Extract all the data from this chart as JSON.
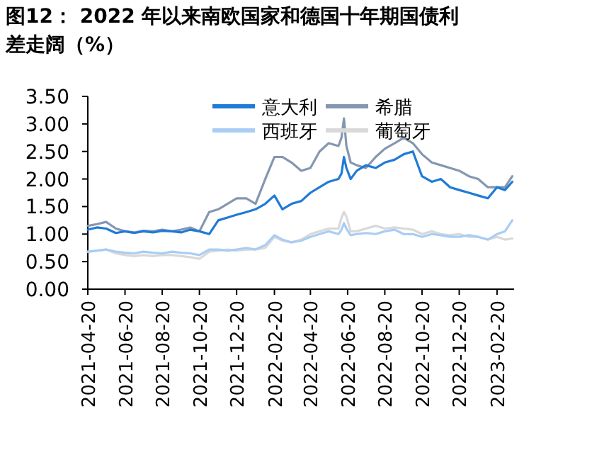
{
  "chart_data": {
    "type": "line",
    "title": "图12：  2022 年以来南欧国家和德国十年期国债利差走阔（%）",
    "x": [
      "2021-04-20",
      "2021-05-05",
      "2021-05-20",
      "2021-06-05",
      "2021-06-20",
      "2021-07-05",
      "2021-07-20",
      "2021-08-05",
      "2021-08-20",
      "2021-09-05",
      "2021-09-20",
      "2021-10-05",
      "2021-10-20",
      "2021-11-05",
      "2021-11-20",
      "2021-12-05",
      "2021-12-20",
      "2022-01-05",
      "2022-01-20",
      "2022-02-05",
      "2022-02-20",
      "2022-03-05",
      "2022-03-20",
      "2022-04-05",
      "2022-04-20",
      "2022-05-05",
      "2022-05-20",
      "2022-06-05",
      "2022-06-10",
      "2022-06-14",
      "2022-06-18",
      "2022-06-25",
      "2022-07-05",
      "2022-07-20",
      "2022-08-05",
      "2022-08-20",
      "2022-09-05",
      "2022-09-20",
      "2022-10-05",
      "2022-10-20",
      "2022-11-05",
      "2022-11-20",
      "2022-12-05",
      "2022-12-20",
      "2023-01-05",
      "2023-01-20",
      "2023-02-05",
      "2023-02-20",
      "2023-03-05",
      "2023-03-17"
    ],
    "series": [
      {
        "name": "意大利",
        "color": "#1f7ad8",
        "values": [
          1.08,
          1.12,
          1.1,
          1.02,
          1.05,
          1.02,
          1.05,
          1.03,
          1.06,
          1.05,
          1.03,
          1.08,
          1.05,
          1.0,
          1.25,
          1.3,
          1.35,
          1.4,
          1.45,
          1.55,
          1.7,
          1.45,
          1.55,
          1.6,
          1.75,
          1.85,
          1.95,
          2.0,
          2.1,
          2.4,
          2.2,
          2.0,
          2.15,
          2.25,
          2.2,
          2.3,
          2.35,
          2.45,
          2.5,
          2.05,
          1.95,
          2.0,
          1.85,
          1.8,
          1.75,
          1.7,
          1.65,
          1.85,
          1.8,
          1.95
        ]
      },
      {
        "name": "希腊",
        "color": "#8497b0",
        "values": [
          1.15,
          1.18,
          1.22,
          1.1,
          1.05,
          1.03,
          1.06,
          1.05,
          1.08,
          1.05,
          1.08,
          1.12,
          1.05,
          1.4,
          1.45,
          1.55,
          1.65,
          1.65,
          1.55,
          2.0,
          2.4,
          2.4,
          2.3,
          2.15,
          2.2,
          2.5,
          2.65,
          2.6,
          2.75,
          3.1,
          2.6,
          2.3,
          2.25,
          2.2,
          2.4,
          2.55,
          2.65,
          2.75,
          2.65,
          2.45,
          2.3,
          2.25,
          2.2,
          2.15,
          2.05,
          2.0,
          1.85,
          1.85,
          1.85,
          2.05
        ]
      },
      {
        "name": "西班牙",
        "color": "#a9cdf5",
        "values": [
          0.68,
          0.7,
          0.72,
          0.68,
          0.66,
          0.65,
          0.68,
          0.66,
          0.65,
          0.68,
          0.66,
          0.65,
          0.62,
          0.72,
          0.72,
          0.7,
          0.72,
          0.75,
          0.72,
          0.8,
          0.98,
          0.9,
          0.85,
          0.88,
          0.95,
          1.0,
          1.05,
          1.0,
          1.08,
          1.2,
          1.1,
          0.98,
          1.0,
          1.02,
          1.0,
          1.05,
          1.08,
          1.0,
          1.0,
          0.95,
          1.0,
          0.98,
          0.95,
          0.95,
          0.98,
          0.95,
          0.9,
          1.0,
          1.05,
          1.25
        ]
      },
      {
        "name": "葡萄牙",
        "color": "#d9d9d9",
        "values": [
          0.68,
          0.7,
          0.72,
          0.65,
          0.62,
          0.6,
          0.62,
          0.6,
          0.62,
          0.62,
          0.6,
          0.58,
          0.55,
          0.68,
          0.7,
          0.72,
          0.7,
          0.72,
          0.72,
          0.75,
          0.95,
          0.88,
          0.85,
          0.9,
          1.0,
          1.05,
          1.1,
          1.1,
          1.3,
          1.4,
          1.32,
          1.05,
          1.05,
          1.1,
          1.15,
          1.1,
          1.12,
          1.1,
          1.08,
          1.0,
          1.05,
          1.0,
          0.98,
          1.0,
          0.95,
          0.95,
          0.9,
          0.95,
          0.9,
          0.92
        ]
      }
    ],
    "xlim": [
      "2021-04-20",
      "2023-03-20"
    ],
    "xticks": [
      "2021-04-20",
      "2021-06-20",
      "2021-08-20",
      "2021-10-20",
      "2021-12-20",
      "2022-02-20",
      "2022-04-20",
      "2022-06-20",
      "2022-08-20",
      "2022-10-20",
      "2022-12-20",
      "2023-02-20"
    ],
    "ylim": [
      0,
      3.5
    ],
    "yticks": [
      {
        "value": 0,
        "label": "0.00"
      },
      {
        "value": 0.5,
        "label": "0.50"
      },
      {
        "value": 1,
        "label": "1.00"
      },
      {
        "value": 1.5,
        "label": "1.50"
      },
      {
        "value": 2,
        "label": "2.00"
      },
      {
        "value": 2.5,
        "label": "2.50"
      },
      {
        "value": 3,
        "label": "3.00"
      },
      {
        "value": 3.5,
        "label": "3.50"
      }
    ],
    "grid": false,
    "legend": "top",
    "marker": "none",
    "line_style": "solid"
  }
}
